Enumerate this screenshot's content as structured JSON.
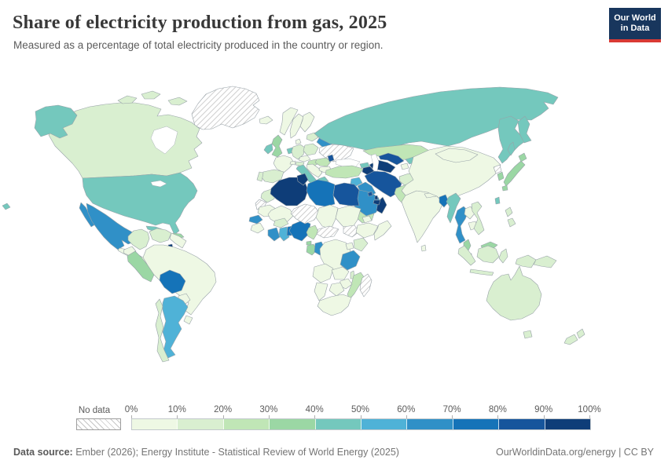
{
  "header": {
    "title": "Share of electricity production from gas, 2025",
    "subtitle": "Measured as a percentage of total electricity produced in the country or region.",
    "logo_line1": "Our World",
    "logo_line2": "in Data"
  },
  "legend": {
    "no_data_label": "No data",
    "ticks": [
      "0%",
      "10%",
      "20%",
      "30%",
      "40%",
      "50%",
      "60%",
      "70%",
      "80%",
      "90%",
      "100%"
    ]
  },
  "footer": {
    "source_label": "Data source:",
    "source_text": " Ember (2026); Energy Institute - Statistical Review of World Energy (2025)",
    "url": "OurWorldinData.org/energy",
    "separator": " | ",
    "license": "CC BY"
  },
  "colors": {
    "logo_bg": "#18365d",
    "logo_red": "#d93a34",
    "border": "#98a2a8"
  },
  "chart_data": {
    "type": "choropleth",
    "title": "Share of electricity production from gas, 2025",
    "unit": "% of total electricity production",
    "year": 2025,
    "legend_position": "bottom",
    "colorscale": {
      "bucket_bounds": [
        0,
        10,
        20,
        30,
        40,
        50,
        60,
        70,
        80,
        90,
        100
      ],
      "colors": [
        "#eef8e4",
        "#d9efd0",
        "#c0e6b6",
        "#9bd7a4",
        "#74c8bd",
        "#4fb2d7",
        "#3090c7",
        "#1573b8",
        "#16559c",
        "#0e3d78"
      ],
      "no_data_fill": "hatched"
    },
    "countries": {
      "Canada": 14,
      "United States": 42,
      "Mexico": 60,
      "Greenland": "no data",
      "Cuba": 45,
      "Dominican Republic": 33,
      "Trinidad and Tobago": 99,
      "Guatemala": 5,
      "Panama": 5,
      "Colombia": 13,
      "Venezuela": 16,
      "Guyana": 8,
      "Ecuador": 2,
      "Peru": 35,
      "Brazil": 5,
      "Bolivia": 72,
      "Paraguay": 0,
      "Argentina": 50,
      "Chile": 15,
      "Uruguay": 3,
      "Iceland": 0,
      "Norway": 1,
      "Sweden": 1,
      "Finland": 8,
      "Lithuania": 15,
      "United Kingdom": 32,
      "Ireland": 45,
      "France": 6,
      "Spain": 16,
      "Portugal": 15,
      "Netherlands": 40,
      "Germany": 12,
      "Denmark": 2,
      "Poland": 10,
      "Czechia": 8,
      "Austria": 18,
      "Hungary": 25,
      "Switzerland": 1,
      "Italy": 43,
      "Serbia": 5,
      "Greece": 40,
      "Romania": 23,
      "Bulgaria": 8,
      "Ukraine": "no data",
      "Belarus": 65,
      "Moldova": 88,
      "Russia": 43,
      "Kazakhstan": 25,
      "Turkmenistan": 95,
      "Uzbekistan": 85,
      "Kyrgyzstan": 40,
      "Tajikistan": 2,
      "Georgia": 40,
      "Azerbaijan": 93,
      "Turkey": 22,
      "Syria": 55,
      "Iraq": 65,
      "Israel": 68,
      "Jordan": 55,
      "Saudi Arabia": 63,
      "Yemen": 25,
      "Oman": 95,
      "United Arab Emirates": 90,
      "Qatar": 99,
      "Kuwait": 85,
      "Iran": 86,
      "Afghanistan": 10,
      "Pakistan": 25,
      "India": 3,
      "Sri Lanka": 0,
      "Nepal": 0,
      "Bangladesh": 73,
      "Myanmar": 45,
      "Thailand": 60,
      "Laos": 0,
      "Cambodia": 2,
      "Vietnam": 10,
      "China": 3,
      "Mongolia": 0,
      "North Korea": "no data",
      "South Korea": 30,
      "Japan": 32,
      "Taiwan": 43,
      "Philippines": 17,
      "Malaysia": 30,
      "Singapore": 95,
      "Indonesia": 18,
      "Papua New Guinea": 15,
      "Australia": 18,
      "New Zealand": 10,
      "Morocco": 18,
      "Western Sahara": "no data",
      "Mauritania": 2,
      "Senegal": 60,
      "Guinea": 2,
      "Mali": 2,
      "Burkina Faso": 15,
      "Cote d'Ivoire": 65,
      "Ghana": 52,
      "Benin": 75,
      "Nigeria": 77,
      "Niger": "no data",
      "Chad": 2,
      "Sudan": 2,
      "South Sudan": "no data",
      "Eritrea": 5,
      "Ethiopia": 2,
      "Somalia": 2,
      "Cameroon": 20,
      "Central African Republic": "no data",
      "Equatorial Guinea": 35,
      "Gabon": 35,
      "Congo": 65,
      "Democratic Republic of Congo": 2,
      "Uganda": 2,
      "Kenya": 10,
      "Tanzania": 60,
      "Angola": 2,
      "Zambia": 2,
      "Malawi": 15,
      "Mozambique": 25,
      "Zimbabwe": 2,
      "Botswana": 2,
      "Namibia": 2,
      "South Africa": 5,
      "Madagascar": "no data",
      "Egypt": 82,
      "Libya": 73,
      "Tunisia": 96,
      "Algeria": 98
    }
  }
}
